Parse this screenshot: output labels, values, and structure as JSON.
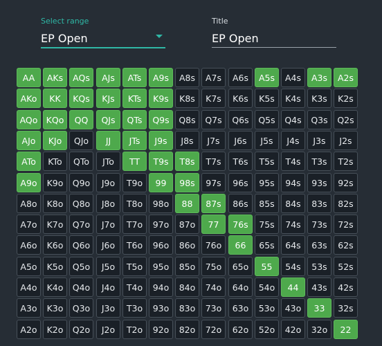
{
  "range_select": {
    "label": "Select range",
    "value": "EP Open"
  },
  "title_field": {
    "label": "Title",
    "value": "EP Open"
  },
  "colors": {
    "accent": "#2fb8a6",
    "selected": "#4ea94c",
    "cell": "#1a2027",
    "background": "#262d35"
  },
  "grid": {
    "rows": [
      [
        "AA",
        "AKs",
        "AQs",
        "AJs",
        "ATs",
        "A9s",
        "A8s",
        "A7s",
        "A6s",
        "A5s",
        "A4s",
        "A3s",
        "A2s"
      ],
      [
        "AKo",
        "KK",
        "KQs",
        "KJs",
        "KTs",
        "K9s",
        "K8s",
        "K7s",
        "K6s",
        "K5s",
        "K4s",
        "K3s",
        "K2s"
      ],
      [
        "AQo",
        "KQo",
        "QQ",
        "QJs",
        "QTs",
        "Q9s",
        "Q8s",
        "Q7s",
        "Q6s",
        "Q5s",
        "Q4s",
        "Q3s",
        "Q2s"
      ],
      [
        "AJo",
        "KJo",
        "QJo",
        "JJ",
        "JTs",
        "J9s",
        "J8s",
        "J7s",
        "J6s",
        "J5s",
        "J4s",
        "J3s",
        "J2s"
      ],
      [
        "ATo",
        "KTo",
        "QTo",
        "JTo",
        "TT",
        "T9s",
        "T8s",
        "T7s",
        "T6s",
        "T5s",
        "T4s",
        "T3s",
        "T2s"
      ],
      [
        "A9o",
        "K9o",
        "Q9o",
        "J9o",
        "T9o",
        "99",
        "98s",
        "97s",
        "96s",
        "95s",
        "94s",
        "93s",
        "92s"
      ],
      [
        "A8o",
        "K8o",
        "Q8o",
        "J8o",
        "T8o",
        "98o",
        "88",
        "87s",
        "86s",
        "85s",
        "84s",
        "83s",
        "82s"
      ],
      [
        "A7o",
        "K7o",
        "Q7o",
        "J7o",
        "T7o",
        "97o",
        "87o",
        "77",
        "76s",
        "75s",
        "74s",
        "73s",
        "72s"
      ],
      [
        "A6o",
        "K6o",
        "Q6o",
        "J6o",
        "T6o",
        "96o",
        "86o",
        "76o",
        "66",
        "65s",
        "64s",
        "63s",
        "62s"
      ],
      [
        "A5o",
        "K5o",
        "Q5o",
        "J5o",
        "T5o",
        "95o",
        "85o",
        "75o",
        "65o",
        "55",
        "54s",
        "53s",
        "52s"
      ],
      [
        "A4o",
        "K4o",
        "Q4o",
        "J4o",
        "T4o",
        "94o",
        "84o",
        "74o",
        "64o",
        "54o",
        "44",
        "43s",
        "42s"
      ],
      [
        "A3o",
        "K3o",
        "Q3o",
        "J3o",
        "T3o",
        "93o",
        "83o",
        "73o",
        "63o",
        "53o",
        "43o",
        "33",
        "32s"
      ],
      [
        "A2o",
        "K2o",
        "Q2o",
        "J2o",
        "T2o",
        "92o",
        "82o",
        "72o",
        "62o",
        "52o",
        "42o",
        "32o",
        "22"
      ]
    ],
    "selected": [
      "AA",
      "AKs",
      "AQs",
      "AJs",
      "ATs",
      "A9s",
      "A5s",
      "A3s",
      "A2s",
      "AKo",
      "KK",
      "KQs",
      "KJs",
      "KTs",
      "K9s",
      "AQo",
      "KQo",
      "QQ",
      "QJs",
      "QTs",
      "Q9s",
      "AJo",
      "KJo",
      "JJ",
      "JTs",
      "J9s",
      "ATo",
      "TT",
      "T9s",
      "T8s",
      "A9o",
      "99",
      "98s",
      "88",
      "87s",
      "77",
      "76s",
      "66",
      "55",
      "44",
      "33",
      "22"
    ]
  }
}
